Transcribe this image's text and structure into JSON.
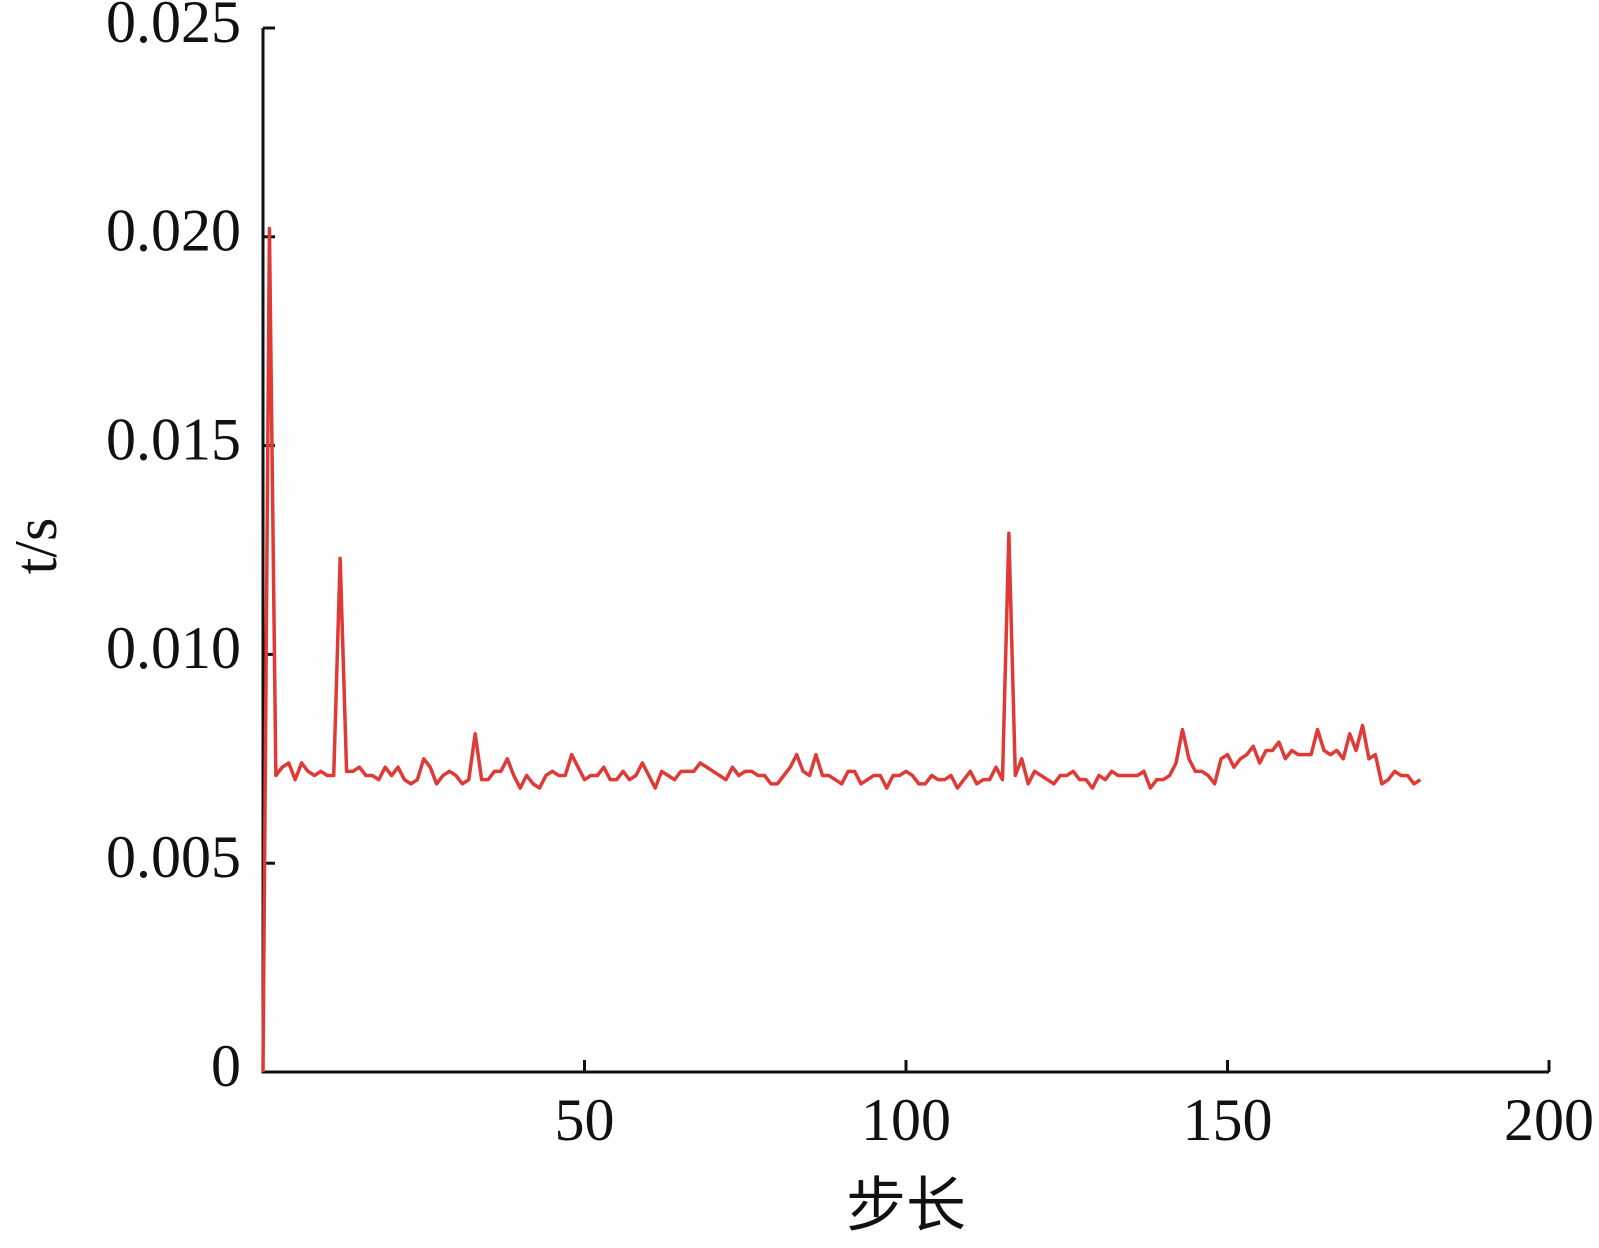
{
  "chart_data": {
    "type": "line",
    "x_label": "步长",
    "y_label": "t/s",
    "color": "#e03a36",
    "xlim": [
      0,
      200
    ],
    "xticks": [
      50,
      100,
      150,
      200
    ],
    "ylim": [
      0,
      0.025
    ],
    "yticks": [
      0,
      0.005,
      {
        "value": 0.01,
        "label": "0.010"
      },
      0.015,
      {
        "value": 0.02,
        "label": "0.020"
      },
      0.025
    ],
    "x": [
      0,
      1,
      2,
      3,
      4,
      5,
      6,
      7,
      8,
      9,
      10,
      11,
      12,
      13,
      14,
      15,
      16,
      17,
      18,
      19,
      20,
      21,
      22,
      23,
      24,
      25,
      26,
      27,
      28,
      29,
      30,
      31,
      32,
      33,
      34,
      35,
      36,
      37,
      38,
      39,
      40,
      41,
      42,
      43,
      44,
      45,
      46,
      47,
      48,
      49,
      50,
      51,
      52,
      53,
      54,
      55,
      56,
      57,
      58,
      59,
      60,
      61,
      62,
      63,
      64,
      65,
      66,
      67,
      68,
      69,
      70,
      71,
      72,
      73,
      74,
      75,
      76,
      77,
      78,
      79,
      80,
      81,
      82,
      83,
      84,
      85,
      86,
      87,
      88,
      89,
      90,
      91,
      92,
      93,
      94,
      95,
      96,
      97,
      98,
      99,
      100,
      101,
      102,
      103,
      104,
      105,
      106,
      107,
      108,
      109,
      110,
      111,
      112,
      113,
      114,
      115,
      116,
      117,
      118,
      119,
      120,
      121,
      122,
      123,
      124,
      125,
      126,
      127,
      128,
      129,
      130,
      131,
      132,
      133,
      134,
      135,
      136,
      137,
      138,
      139,
      140,
      141,
      142,
      143,
      144,
      145,
      146,
      147,
      148,
      149,
      150,
      151,
      152,
      153,
      154,
      155,
      156,
      157,
      158,
      159,
      160,
      161,
      162,
      163,
      164,
      165,
      166,
      167,
      168,
      169,
      170,
      171,
      172,
      173,
      174,
      175,
      176,
      177,
      178,
      179,
      180
    ],
    "values": [
      0,
      0.0202,
      0.0071,
      0.0073,
      0.0074,
      0.007,
      0.0074,
      0.0072,
      0.0071,
      0.0072,
      0.0071,
      0.0071,
      0.0123,
      0.0072,
      0.0072,
      0.0073,
      0.0071,
      0.0071,
      0.007,
      0.0073,
      0.0071,
      0.0073,
      0.007,
      0.0069,
      0.007,
      0.0075,
      0.0073,
      0.0069,
      0.0071,
      0.0072,
      0.0071,
      0.0069,
      0.007,
      0.0081,
      0.007,
      0.007,
      0.0072,
      0.0072,
      0.0075,
      0.0071,
      0.0068,
      0.0071,
      0.0069,
      0.0068,
      0.0071,
      0.0072,
      0.0071,
      0.0071,
      0.0076,
      0.0073,
      0.007,
      0.0071,
      0.0071,
      0.0073,
      0.007,
      0.007,
      0.0072,
      0.007,
      0.0071,
      0.0074,
      0.0071,
      0.0068,
      0.0072,
      0.0071,
      0.007,
      0.0072,
      0.0072,
      0.0072,
      0.0074,
      0.0073,
      0.0072,
      0.0071,
      0.007,
      0.0073,
      0.0071,
      0.0072,
      0.0072,
      0.0071,
      0.0071,
      0.0069,
      0.0069,
      0.0071,
      0.0073,
      0.0076,
      0.0072,
      0.0071,
      0.0076,
      0.0071,
      0.0071,
      0.007,
      0.0069,
      0.0072,
      0.0072,
      0.0069,
      0.007,
      0.0071,
      0.0071,
      0.0068,
      0.0071,
      0.0071,
      0.0072,
      0.0071,
      0.0069,
      0.0069,
      0.0071,
      0.007,
      0.007,
      0.0071,
      0.0068,
      0.007,
      0.0072,
      0.0069,
      0.007,
      0.007,
      0.0073,
      0.007,
      0.0129,
      0.0071,
      0.0075,
      0.0069,
      0.0072,
      0.0071,
      0.007,
      0.0069,
      0.0071,
      0.0071,
      0.0072,
      0.007,
      0.007,
      0.0068,
      0.0071,
      0.007,
      0.0072,
      0.0071,
      0.0071,
      0.0071,
      0.0071,
      0.0072,
      0.0068,
      0.007,
      0.007,
      0.0071,
      0.0074,
      0.0082,
      0.0075,
      0.0072,
      0.0072,
      0.0071,
      0.0069,
      0.0075,
      0.0076,
      0.0073,
      0.0075,
      0.0076,
      0.0078,
      0.0074,
      0.0077,
      0.0077,
      0.0079,
      0.0075,
      0.0077,
      0.0076,
      0.0076,
      0.0076,
      0.0082,
      0.0077,
      0.0076,
      0.0077,
      0.0075,
      0.0081,
      0.0077,
      0.0083,
      0.0075,
      0.0076,
      0.0069,
      0.007,
      0.0072,
      0.0071,
      0.0071,
      0.0069,
      0.007
    ]
  }
}
